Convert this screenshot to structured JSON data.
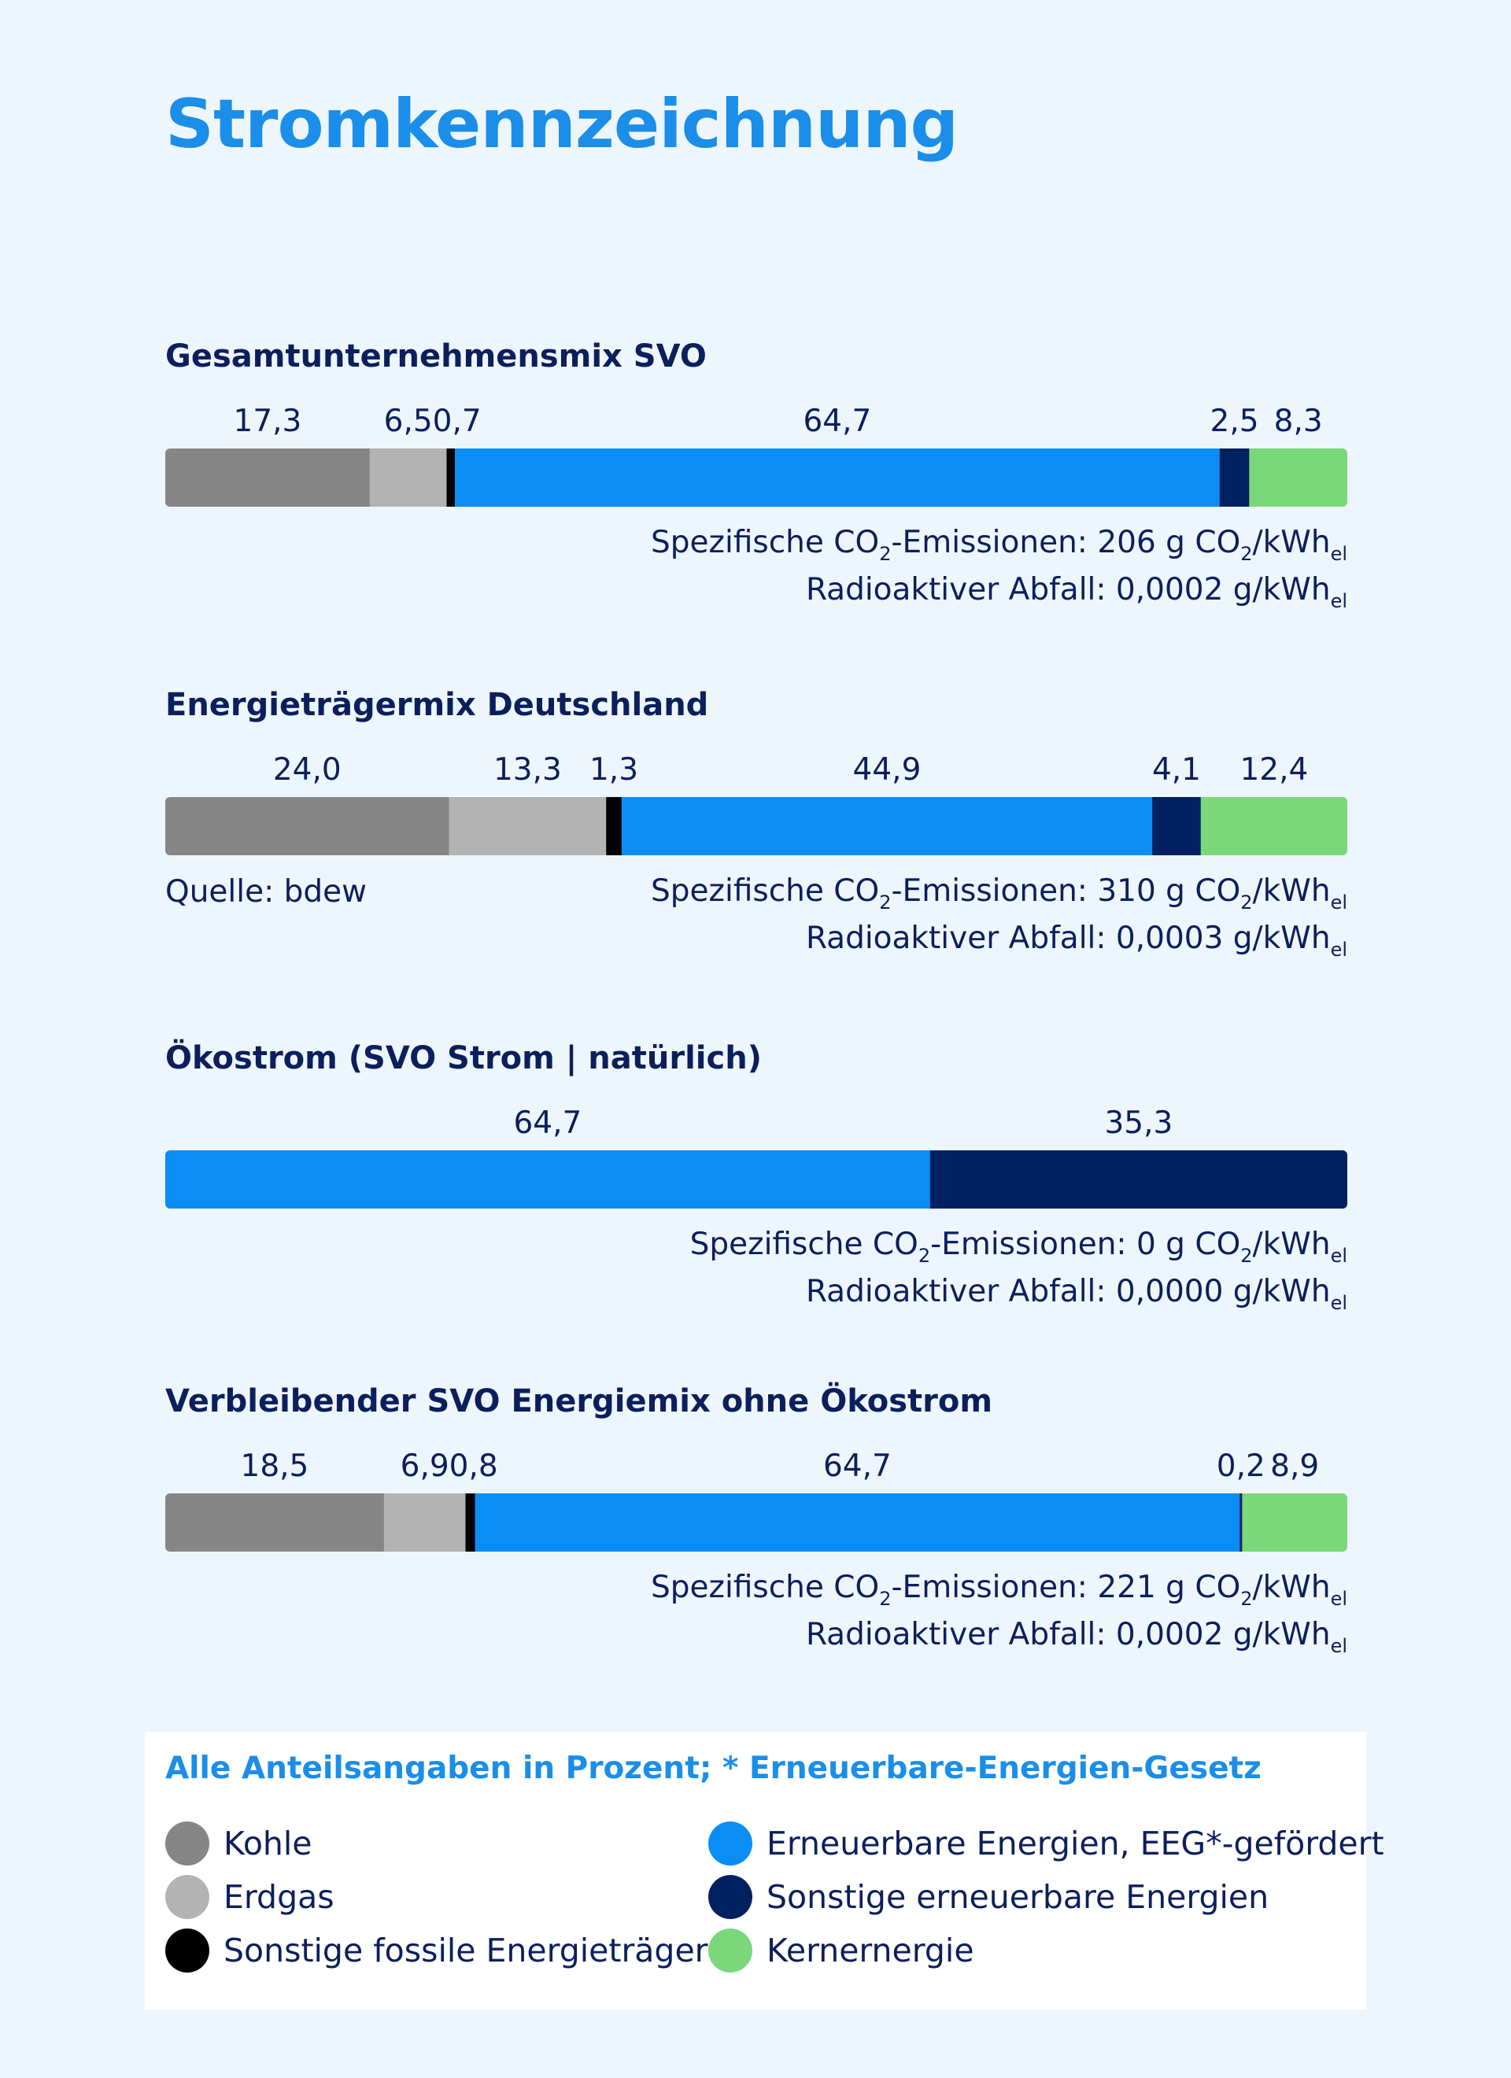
{
  "title": "Stromkennzeichnung",
  "energy_types": [
    {
      "key": "kohle",
      "label": "Kohle",
      "color": "#868686"
    },
    {
      "key": "erdgas",
      "label": "Erdgas",
      "color": "#b3b3b3"
    },
    {
      "key": "sonst_fossil",
      "label": "Sonstige fossile Energieträger",
      "color": "#000000"
    },
    {
      "key": "eeg",
      "label": "Erneuerbare Energien, EEG*-gefördert",
      "color": "#0a8ef5"
    },
    {
      "key": "sonst_ee",
      "label": "Sonstige erneuerbare Energien",
      "color": "#00205f"
    },
    {
      "key": "kern",
      "label": "Kernernergie",
      "color": "#7ad87a"
    }
  ],
  "chart_data": [
    {
      "type": "bar",
      "orientation": "horizontal-stacked",
      "title": "Gesamtunternehmensmix SVO",
      "categories": [
        "Kohle",
        "Erdgas",
        "Sonstige fossile Energieträger",
        "Erneuerbare Energien, EEG*-gefördert",
        "Sonstige erneuerbare Energien",
        "Kernernergie"
      ],
      "values": [
        17.3,
        6.5,
        0.7,
        64.7,
        2.5,
        8.3
      ],
      "value_labels": [
        "17,3",
        "6,5",
        "0,7",
        "64,7",
        "2,5",
        "8,3"
      ],
      "co2_value": "206",
      "waste_value": "0,0002",
      "source": ""
    },
    {
      "type": "bar",
      "orientation": "horizontal-stacked",
      "title": "Energieträgermix Deutschland",
      "categories": [
        "Kohle",
        "Erdgas",
        "Sonstige fossile Energieträger",
        "Erneuerbare Energien, EEG*-gefördert",
        "Sonstige erneuerbare Energien",
        "Kernernergie"
      ],
      "values": [
        24.0,
        13.3,
        1.3,
        44.9,
        4.1,
        12.4
      ],
      "value_labels": [
        "24,0",
        "13,3",
        "1,3",
        "44,9",
        "4,1",
        "12,4"
      ],
      "co2_value": "310",
      "waste_value": "0,0003",
      "source": "Quelle: bdew"
    },
    {
      "type": "bar",
      "orientation": "horizontal-stacked",
      "title": "Ökostrom (SVO Strom | natürlich)",
      "categories": [
        "Erneuerbare Energien, EEG*-gefördert",
        "Sonstige erneuerbare Energien"
      ],
      "values": [
        64.7,
        35.3
      ],
      "value_labels": [
        "64,7",
        "35,3"
      ],
      "co2_value": "0",
      "waste_value": "0,0000",
      "source": ""
    },
    {
      "type": "bar",
      "orientation": "horizontal-stacked",
      "title": "Verbleibender SVO Energiemix ohne Ökostrom",
      "categories": [
        "Kohle",
        "Erdgas",
        "Sonstige fossile Energieträger",
        "Erneuerbare Energien, EEG*-gefördert",
        "Sonstige erneuerbare Energien",
        "Kernernergie"
      ],
      "values": [
        18.5,
        6.9,
        0.8,
        64.7,
        0.2,
        8.9
      ],
      "value_labels": [
        "18,5",
        "6,9",
        "0,8",
        "64,7",
        "0,2",
        "8,9"
      ],
      "co2_value": "221",
      "waste_value": "0,0002",
      "source": ""
    }
  ],
  "emission_text": {
    "co2_prefix": "Spezifische CO",
    "co2_sub": "2",
    "co2_middle": "-Emissionen: ",
    "co2_unit_pre": " g CO",
    "co2_unit_sub": "2",
    "co2_unit_post": "/kWh",
    "el_sub": "el",
    "waste_prefix": "Radioaktiver Abfall: ",
    "waste_unit": " g/kWh"
  },
  "legend": {
    "title": "Alle Anteilsangaben in Prozent; * Erneuerbare-Energien-Gesetz",
    "col1": [
      "kohle",
      "erdgas",
      "sonst_fossil"
    ],
    "col2": [
      "eeg",
      "sonst_ee",
      "kern"
    ]
  }
}
